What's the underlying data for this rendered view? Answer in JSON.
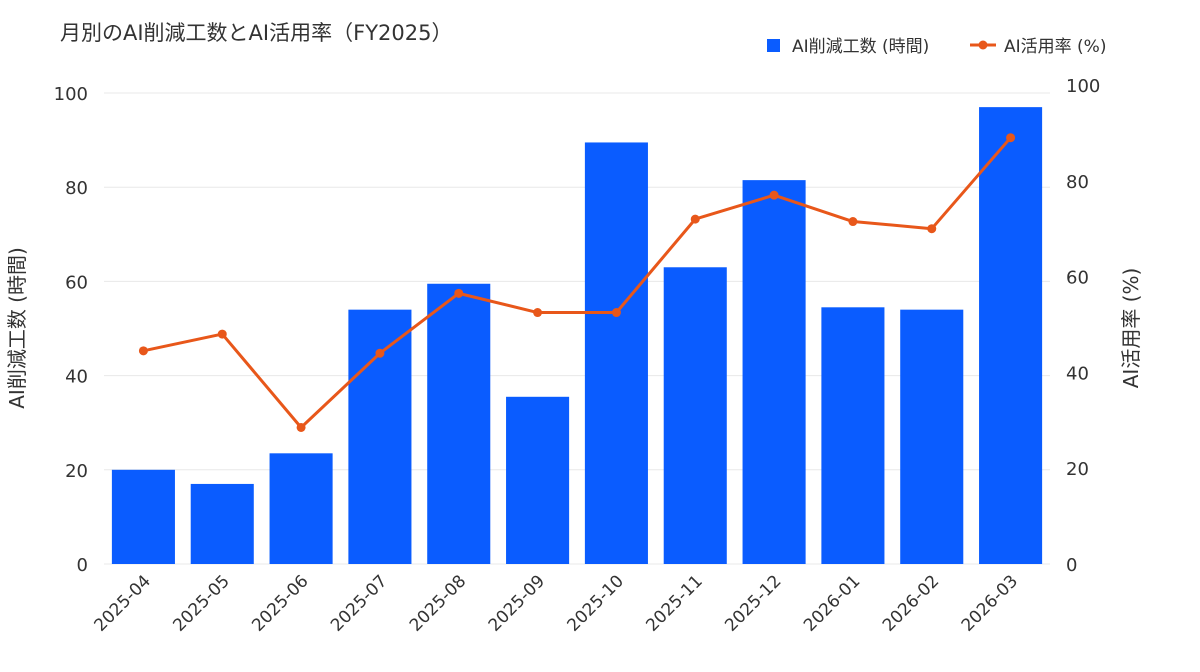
{
  "chart_data": {
    "type": "bar",
    "title": "月別のAI削減工数とAI活用率（FY2025）",
    "categories": [
      "2025-04",
      "2025-05",
      "2025-06",
      "2025-07",
      "2025-08",
      "2025-09",
      "2025-10",
      "2025-11",
      "2025-12",
      "2026-01",
      "2026-02",
      "2026-03"
    ],
    "series": [
      {
        "name": "AI削減工数 (時間)",
        "type": "bar",
        "axis": "left",
        "color": "#0a5cff",
        "values": [
          20,
          17,
          23.5,
          54,
          59.5,
          35.5,
          89.5,
          63,
          81.5,
          54.5,
          54,
          97
        ]
      },
      {
        "name": "AI活用率 (%)",
        "type": "line",
        "axis": "right",
        "color": "#e8571a",
        "values": [
          44.5,
          48,
          28.5,
          44,
          56.5,
          52.5,
          52.5,
          72,
          77,
          71.5,
          70,
          89
        ]
      }
    ],
    "ylabel": "AI削減工数 (時間)",
    "ylabel_right": "AI活用率 (%)",
    "ylim": [
      0,
      100
    ],
    "ylim_right": [
      0,
      100
    ],
    "yticks": [
      "0",
      "20",
      "40",
      "60",
      "80",
      "100"
    ],
    "yticks_right": [
      "0",
      "20",
      "40",
      "60",
      "80",
      "100"
    ],
    "grid": true,
    "legend_position": "top-right"
  }
}
